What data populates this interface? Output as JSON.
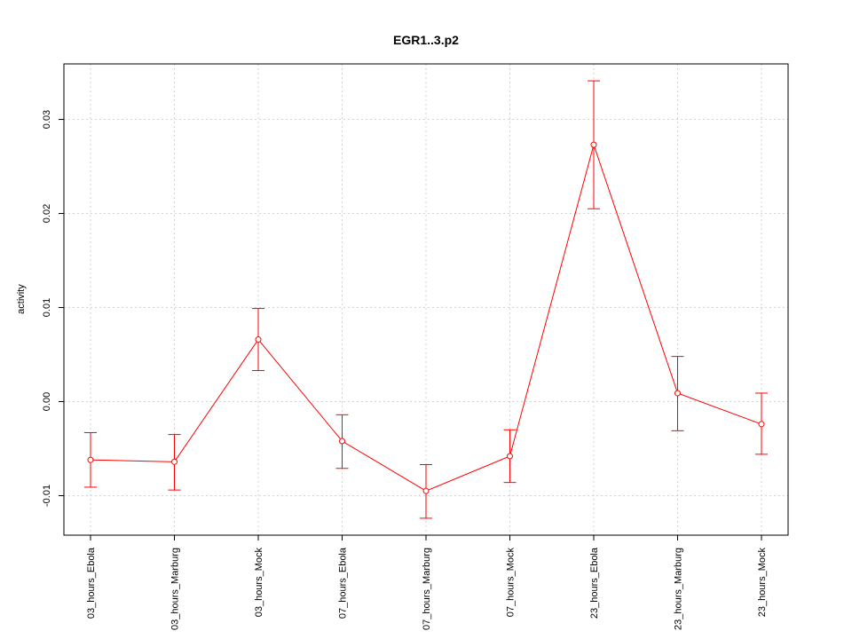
{
  "chart_data": {
    "type": "line",
    "title": "EGR1..3.p2",
    "xlabel": "",
    "ylabel": "activity",
    "categories": [
      "03_hours_Ebola",
      "03_hours_Marburg",
      "03_hours_Mock",
      "07_hours_Ebola",
      "07_hours_Marburg",
      "07_hours_Mock",
      "23_hours_Ebola",
      "23_hours_Marburg",
      "23_hours_Mock"
    ],
    "series": [
      {
        "color": "#ff0000",
        "values": [
          -0.0062,
          -0.0064,
          0.0066,
          -0.0042,
          -0.0095,
          -0.0058,
          0.0273,
          0.0009,
          -0.0024
        ],
        "error_lower": [
          -0.0091,
          -0.0094,
          0.0033,
          -0.0071,
          -0.0124,
          -0.0086,
          0.0205,
          -0.0031,
          -0.0056
        ],
        "error_upper": [
          -0.0033,
          -0.0035,
          0.0099,
          -0.0014,
          -0.0067,
          -0.003,
          0.0341,
          0.0048,
          0.0009
        ]
      }
    ],
    "yticks": [
      -0.01,
      0.0,
      0.01,
      0.02,
      0.03
    ],
    "ytick_labels": [
      "-0.01",
      "0.00",
      "0.01",
      "0.02",
      "0.03"
    ],
    "ylim": [
      -0.0142,
      0.0359
    ],
    "grid": true,
    "grid_color": "#d3d3d3",
    "legend": "none"
  }
}
